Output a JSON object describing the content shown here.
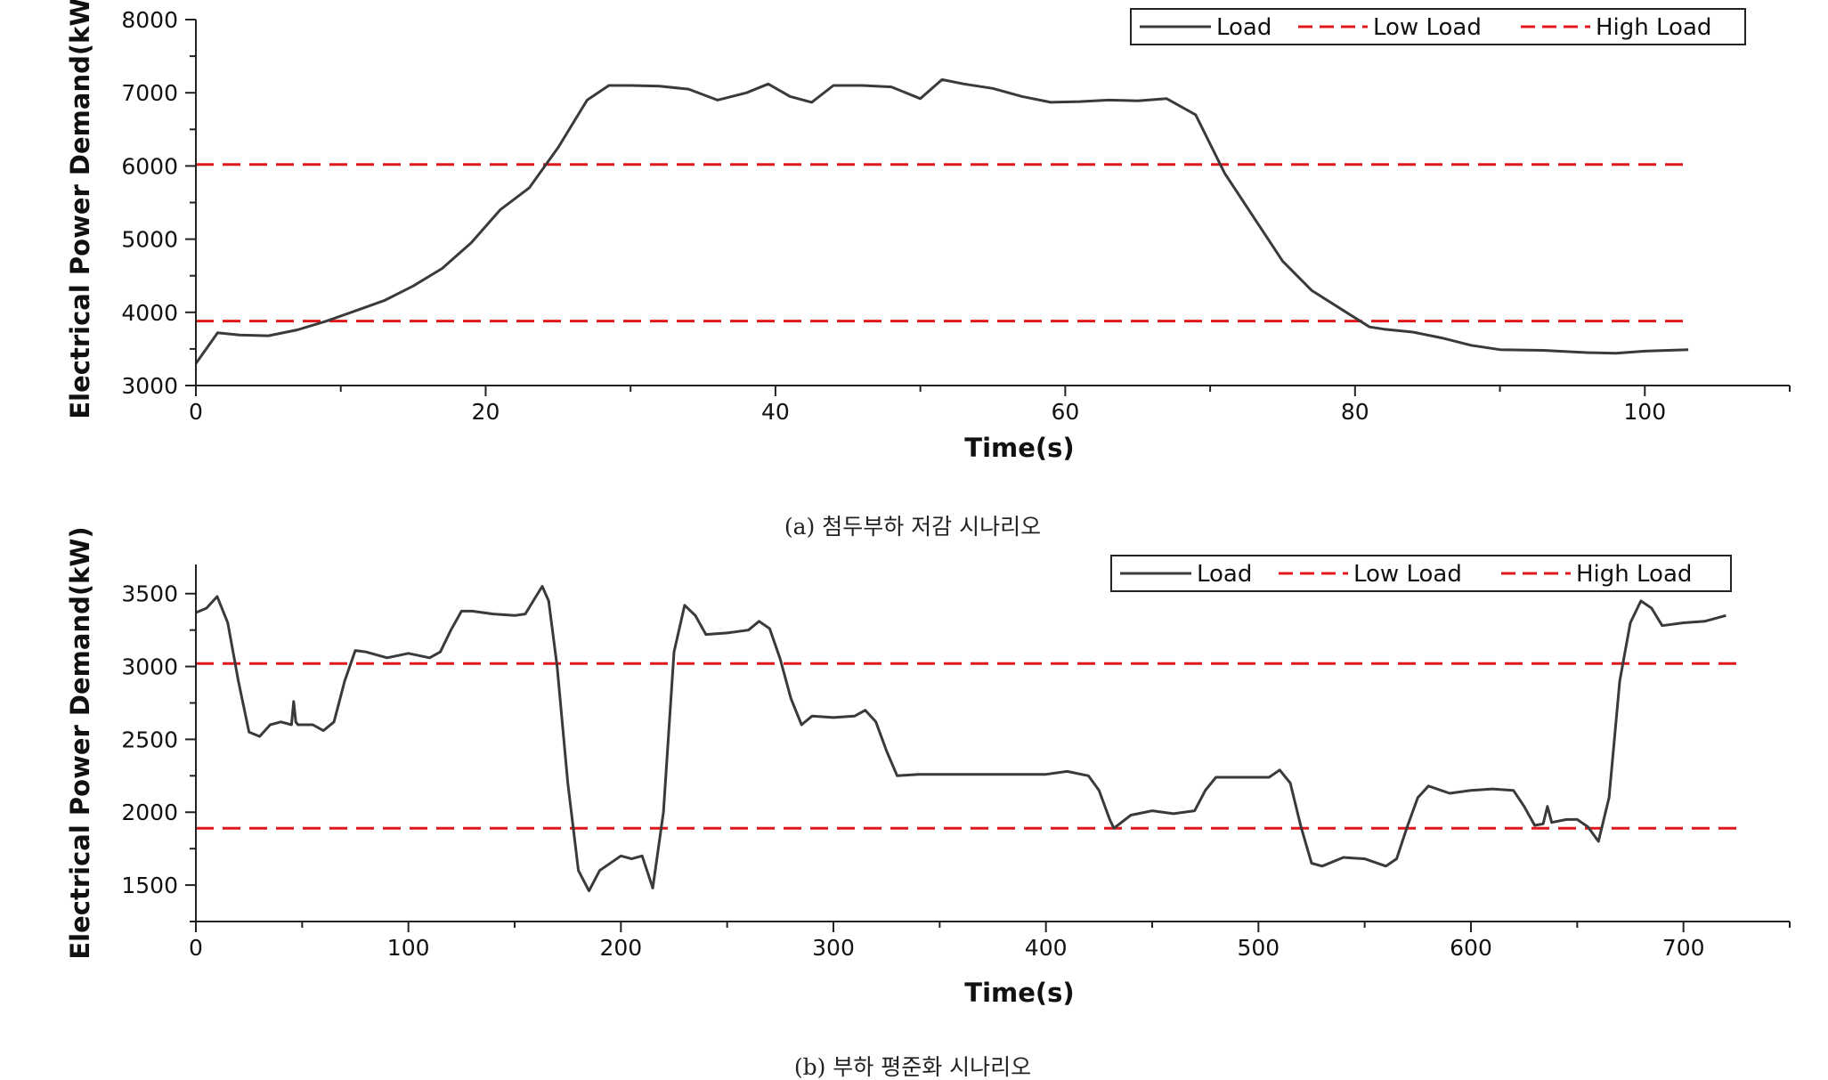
{
  "colors": {
    "load": "#3a3a3a",
    "threshold": "#e0181b",
    "axis": "#222222"
  },
  "legend": {
    "load": "Load",
    "low": "Low Load",
    "high": "High Load"
  },
  "chart_data": [
    {
      "type": "line",
      "caption": "(a) 첨두부하 저감 시나리오",
      "xlabel": "Time(s)",
      "ylabel": "Electrical Power Demand(kW)",
      "xlim": [
        0,
        110
      ],
      "ylim": [
        3000,
        8000
      ],
      "xticks": [
        0,
        20,
        40,
        60,
        80,
        100
      ],
      "yticks": [
        3000,
        4000,
        5000,
        6000,
        7000,
        8000
      ],
      "legend_position": "top-right",
      "grid": false,
      "thresholds": {
        "low": 3880,
        "high": 6020,
        "x_range": [
          0,
          103
        ]
      },
      "series": [
        {
          "name": "Load",
          "x": [
            0,
            1.5,
            3,
            5,
            7,
            9,
            11,
            13,
            15,
            17,
            19,
            21,
            23,
            25,
            27,
            28.5,
            30,
            32,
            34,
            36,
            38,
            39.5,
            41,
            42.5,
            44,
            46,
            48,
            50,
            51.5,
            53,
            55,
            57,
            59,
            61,
            63,
            65,
            67,
            69,
            71,
            73,
            75,
            77,
            79,
            81,
            82,
            84,
            86,
            88,
            90,
            93,
            96,
            98,
            100,
            103
          ],
          "y": [
            3300,
            3720,
            3690,
            3680,
            3760,
            3880,
            4020,
            4160,
            4360,
            4600,
            4950,
            5400,
            5700,
            6250,
            6900,
            7100,
            7100,
            7090,
            7050,
            6900,
            7000,
            7120,
            6950,
            6870,
            7100,
            7100,
            7080,
            6920,
            7180,
            7120,
            7060,
            6950,
            6870,
            6880,
            6900,
            6890,
            6920,
            6700,
            5900,
            5300,
            4700,
            4300,
            4050,
            3800,
            3770,
            3730,
            3650,
            3550,
            3490,
            3480,
            3450,
            3440,
            3470,
            3490
          ]
        }
      ]
    },
    {
      "type": "line",
      "caption": "(b) 부하 평준화 시나리오",
      "xlabel": "Time(s)",
      "ylabel": "Electrical Power Demand(kW)",
      "xlim": [
        0,
        750
      ],
      "ylim": [
        1250,
        3700
      ],
      "xticks": [
        0,
        100,
        200,
        300,
        400,
        500,
        600,
        700
      ],
      "yticks": [
        1500,
        2000,
        2500,
        3000,
        3500
      ],
      "legend_position": "top-right",
      "grid": false,
      "thresholds": {
        "low": 1890,
        "high": 3020,
        "x_range": [
          0,
          725
        ]
      },
      "series": [
        {
          "name": "Load",
          "x": [
            0,
            5,
            10,
            15,
            20,
            25,
            30,
            35,
            40,
            45,
            46,
            47,
            48,
            55,
            60,
            65,
            70,
            75,
            80,
            90,
            100,
            110,
            115,
            120,
            125,
            130,
            140,
            150,
            155,
            160,
            163,
            166,
            170,
            175,
            180,
            185,
            190,
            200,
            205,
            210,
            215,
            220,
            225,
            230,
            235,
            240,
            250,
            260,
            265,
            270,
            275,
            280,
            285,
            290,
            300,
            310,
            315,
            320,
            325,
            330,
            340,
            360,
            380,
            400,
            410,
            420,
            425,
            430,
            432,
            440,
            450,
            460,
            470,
            475,
            480,
            490,
            500,
            505,
            510,
            515,
            520,
            525,
            530,
            540,
            550,
            560,
            565,
            570,
            575,
            580,
            590,
            600,
            610,
            620,
            625,
            630,
            634,
            636,
            638,
            645,
            650,
            655,
            660,
            665,
            670,
            675,
            680,
            685,
            690,
            700,
            710,
            720
          ],
          "y": [
            3370,
            3400,
            3480,
            3300,
            2900,
            2550,
            2520,
            2600,
            2620,
            2600,
            2760,
            2620,
            2600,
            2600,
            2560,
            2620,
            2900,
            3110,
            3100,
            3060,
            3090,
            3060,
            3100,
            3250,
            3380,
            3380,
            3360,
            3350,
            3360,
            3480,
            3550,
            3450,
            3000,
            2200,
            1600,
            1460,
            1600,
            1700,
            1680,
            1700,
            1480,
            2000,
            3100,
            3420,
            3350,
            3220,
            3230,
            3250,
            3310,
            3260,
            3050,
            2780,
            2600,
            2660,
            2650,
            2660,
            2700,
            2620,
            2420,
            2250,
            2260,
            2260,
            2260,
            2260,
            2280,
            2250,
            2150,
            1950,
            1890,
            1980,
            2010,
            1990,
            2010,
            2150,
            2240,
            2240,
            2240,
            2240,
            2290,
            2200,
            1900,
            1650,
            1630,
            1690,
            1680,
            1630,
            1680,
            1900,
            2100,
            2180,
            2130,
            2150,
            2160,
            2150,
            2040,
            1910,
            1920,
            2040,
            1930,
            1950,
            1950,
            1900,
            1800,
            2100,
            2900,
            3300,
            3450,
            3400,
            3280,
            3300,
            3310,
            3350
          ]
        }
      ]
    }
  ]
}
